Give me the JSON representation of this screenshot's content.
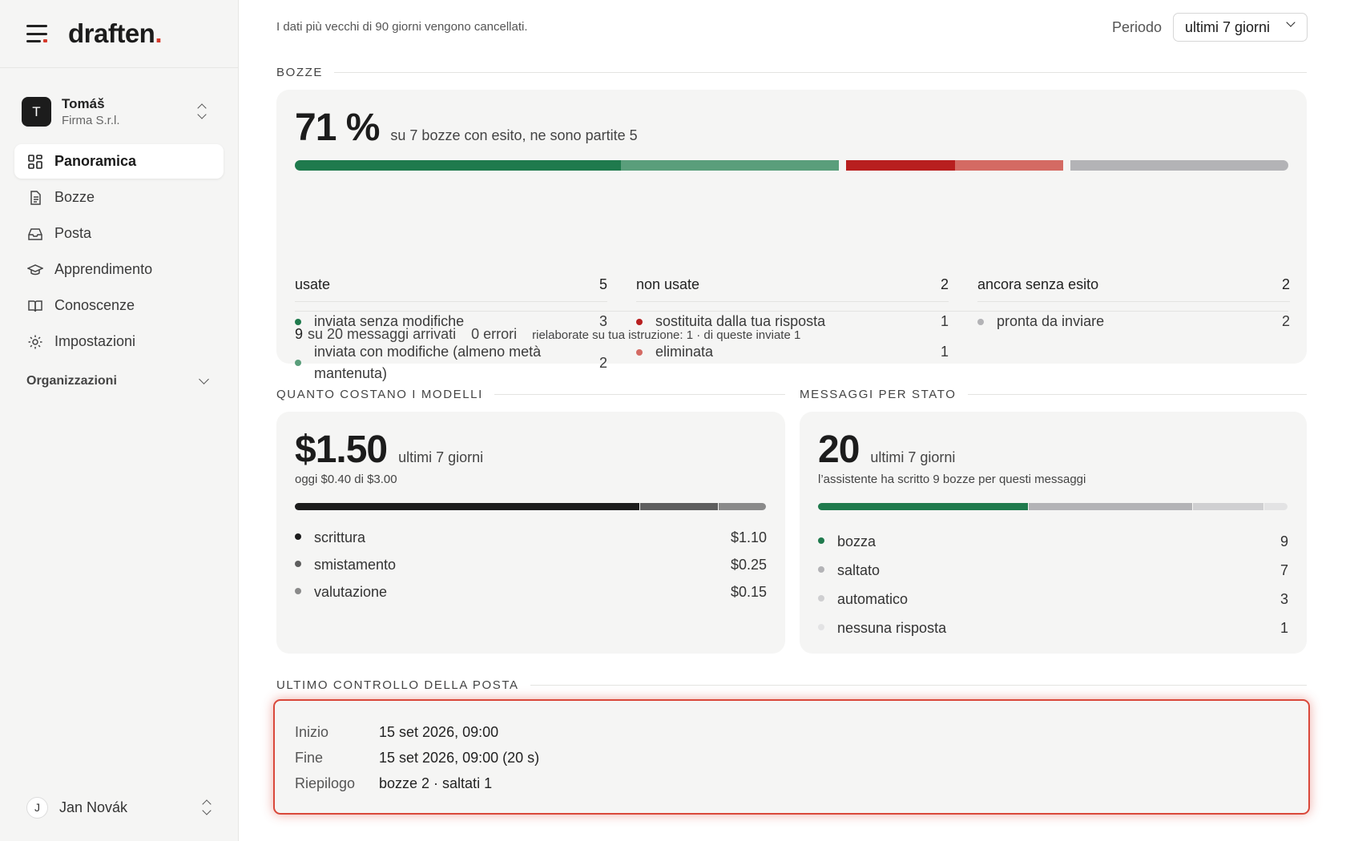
{
  "brand": {
    "name": "draften",
    "dot": "."
  },
  "account": {
    "initial": "T",
    "name": "Tomáš",
    "org": "Firma S.r.l."
  },
  "nav": [
    {
      "label": "Panoramica",
      "icon": "dashboard-icon",
      "active": true
    },
    {
      "label": "Bozze",
      "icon": "document-icon"
    },
    {
      "label": "Posta",
      "icon": "inbox-icon"
    },
    {
      "label": "Apprendimento",
      "icon": "graduation-cap-icon"
    },
    {
      "label": "Conoscenze",
      "icon": "book-icon"
    },
    {
      "label": "Impostazioni",
      "icon": "gear-icon"
    }
  ],
  "organizations_label": "Organizzazioni",
  "user": {
    "initial": "J",
    "name": "Jan Novák"
  },
  "header": {
    "info": "I dati più vecchi di 90 giorni vengono cancellati.",
    "period_label": "Periodo",
    "period_value": "ultimi 7 giorni"
  },
  "drafts": {
    "section_title": "BOZZE",
    "percent": "71 %",
    "summary": "su 7 bozze con esito, ne sono partite 5",
    "bar": [
      {
        "value": 3,
        "color": "#1f7a4d"
      },
      {
        "value": 2,
        "color": "#5a9e7b"
      },
      {
        "value": 1,
        "color": "#b81f1f"
      },
      {
        "value": 1,
        "color": "#d46a63"
      },
      {
        "value": 2,
        "color": "#b3b3b6"
      }
    ],
    "groups": [
      {
        "label": "usate",
        "count": "5",
        "items": [
          {
            "label": "inviata senza modifiche",
            "count": "3",
            "color": "#1f7a4d"
          },
          {
            "label": "inviata con modifiche (almeno metà mantenuta)",
            "count": "2",
            "color": "#5a9e7b"
          }
        ]
      },
      {
        "label": "non usate",
        "count": "2",
        "items": [
          {
            "label": "sostituita dalla tua risposta",
            "count": "1",
            "color": "#b81f1f"
          },
          {
            "label": "eliminata",
            "count": "1",
            "color": "#d46a63"
          }
        ]
      },
      {
        "label": "ancora senza esito",
        "count": "2",
        "items": [
          {
            "label": "pronta da inviare",
            "count": "2",
            "color": "#b3b3b6"
          }
        ]
      }
    ],
    "footer": {
      "arrived_num": "9",
      "arrived_text": "su 20 messaggi arrivati",
      "errors": "0 errori",
      "reworked": "rielaborate su tua istruzione: 1 · di queste inviate 1"
    }
  },
  "costs": {
    "section_title": "QUANTO COSTANO I MODELLI",
    "total": "$1.50",
    "period": "ultimi 7 giorni",
    "today": "oggi $0.40 di $3.00",
    "items": [
      {
        "label": "scrittura",
        "value": "$1.10",
        "amount": 1.1,
        "color": "#1c1c1c"
      },
      {
        "label": "smistamento",
        "value": "$0.25",
        "amount": 0.25,
        "color": "#5e5e5e"
      },
      {
        "label": "valutazione",
        "value": "$0.15",
        "amount": 0.15,
        "color": "#8a8a8a"
      }
    ]
  },
  "messages": {
    "section_title": "MESSAGGI PER STATO",
    "total": "20",
    "period": "ultimi 7 giorni",
    "note": "l’assistente ha scritto 9 bozze per questi messaggi",
    "items": [
      {
        "label": "bozza",
        "value": "9",
        "amount": 9,
        "color": "#1f7a4d"
      },
      {
        "label": "saltato",
        "value": "7",
        "amount": 7,
        "color": "#b3b3b6"
      },
      {
        "label": "automatico",
        "value": "3",
        "amount": 3,
        "color": "#cfcfd1"
      },
      {
        "label": "nessuna risposta",
        "value": "1",
        "amount": 1,
        "color": "#e3e3e4"
      }
    ]
  },
  "mailcheck": {
    "section_title": "ULTIMO CONTROLLO DELLA POSTA",
    "rows": [
      {
        "key": "Inizio",
        "value": "15 set 2026, 09:00"
      },
      {
        "key": "Fine",
        "value": "15 set 2026, 09:00 (20 s)"
      },
      {
        "key": "Riepilogo",
        "value": "bozze 2 · saltati 1"
      }
    ]
  }
}
